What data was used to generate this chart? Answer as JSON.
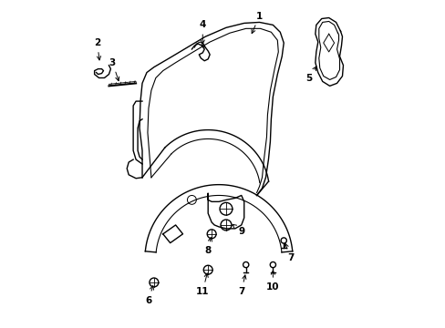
{
  "background": "#ffffff",
  "line_color": "#000000",
  "lw": 1.0,
  "figsize": [
    4.89,
    3.6
  ],
  "dpi": 100
}
